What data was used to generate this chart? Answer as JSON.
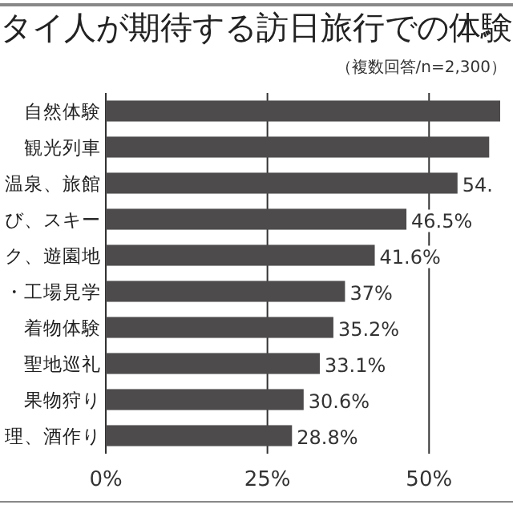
{
  "chart_data": {
    "type": "bar",
    "orientation": "horizontal",
    "title": "タイ人が期待する訪日旅行での体験",
    "subtitle": "（複数回答/n=2,300）",
    "categories": [
      "自然体験",
      "観光列車",
      "温泉、旅館",
      "び、スキー",
      "ク、遊園地",
      "・工場見学",
      "着物体験",
      "聖地巡礼",
      "果物狩り",
      "理、酒作り"
    ],
    "values": [
      61,
      59.3,
      54.4,
      46.5,
      41.6,
      37,
      35.2,
      33.1,
      30.6,
      28.8
    ],
    "value_labels": [
      null,
      null,
      "54.",
      "46.5%",
      "41.6%",
      "37%",
      "35.2%",
      "33.1%",
      "30.6%",
      "28.8%"
    ],
    "color": "#4d4b4b",
    "xlim": [
      0,
      61
    ],
    "xticks": [
      {
        "value": 0,
        "label": "0%"
      },
      {
        "value": 25,
        "label": "25%"
      },
      {
        "value": 50,
        "label": "50%"
      }
    ],
    "grid": "x"
  }
}
